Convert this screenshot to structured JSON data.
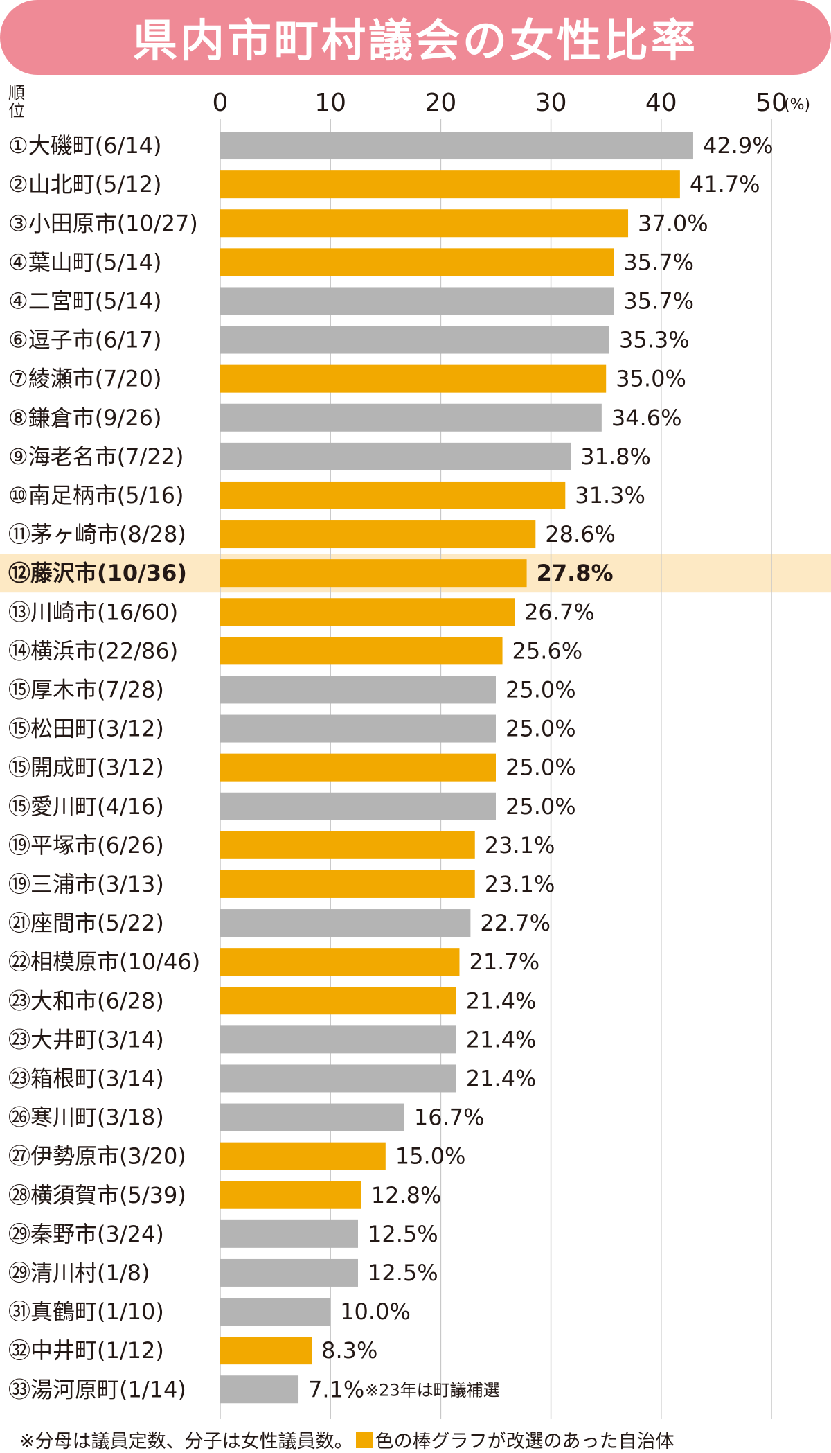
{
  "title": "県内市町村議会の女性比率",
  "colors": {
    "title_bg": "#ef8a96",
    "reelected": "#f2a900",
    "other": "#b4b4b4",
    "highlight_bg": "#fde9c4",
    "grid": "#c8c8c8"
  },
  "chart_data": {
    "type": "bar",
    "orientation": "horizontal",
    "rank_header": "順位",
    "x_unit": "(%)",
    "xlim": [
      0,
      50
    ],
    "x_ticks": [
      "0",
      "10",
      "20",
      "30",
      "40",
      "50"
    ],
    "rows": [
      {
        "label": "①大磯町(6/14)",
        "value": 42.9,
        "value_label": "42.9%",
        "reelected": false
      },
      {
        "label": "②山北町(5/12)",
        "value": 41.7,
        "value_label": "41.7%",
        "reelected": true
      },
      {
        "label": "③小田原市(10/27)",
        "value": 37.0,
        "value_label": "37.0%",
        "reelected": true
      },
      {
        "label": "④葉山町(5/14)",
        "value": 35.7,
        "value_label": "35.7%",
        "reelected": true
      },
      {
        "label": "④二宮町(5/14)",
        "value": 35.7,
        "value_label": "35.7%",
        "reelected": false
      },
      {
        "label": "⑥逗子市(6/17)",
        "value": 35.3,
        "value_label": "35.3%",
        "reelected": false
      },
      {
        "label": "⑦綾瀬市(7/20)",
        "value": 35.0,
        "value_label": "35.0%",
        "reelected": true
      },
      {
        "label": "⑧鎌倉市(9/26)",
        "value": 34.6,
        "value_label": "34.6%",
        "reelected": false
      },
      {
        "label": "⑨海老名市(7/22)",
        "value": 31.8,
        "value_label": "31.8%",
        "reelected": false
      },
      {
        "label": "⑩南足柄市(5/16)",
        "value": 31.3,
        "value_label": "31.3%",
        "reelected": true
      },
      {
        "label": "⑪茅ヶ崎市(8/28)",
        "value": 28.6,
        "value_label": "28.6%",
        "reelected": true
      },
      {
        "label": "⑫藤沢市(10/36)",
        "value": 27.8,
        "value_label": "27.8%",
        "reelected": true,
        "highlight": true
      },
      {
        "label": "⑬川崎市(16/60)",
        "value": 26.7,
        "value_label": "26.7%",
        "reelected": true
      },
      {
        "label": "⑭横浜市(22/86)",
        "value": 25.6,
        "value_label": "25.6%",
        "reelected": true
      },
      {
        "label": "⑮厚木市(7/28)",
        "value": 25.0,
        "value_label": "25.0%",
        "reelected": false
      },
      {
        "label": "⑮松田町(3/12)",
        "value": 25.0,
        "value_label": "25.0%",
        "reelected": false
      },
      {
        "label": "⑮開成町(3/12)",
        "value": 25.0,
        "value_label": "25.0%",
        "reelected": true
      },
      {
        "label": "⑮愛川町(4/16)",
        "value": 25.0,
        "value_label": "25.0%",
        "reelected": false
      },
      {
        "label": "⑲平塚市(6/26)",
        "value": 23.1,
        "value_label": "23.1%",
        "reelected": true
      },
      {
        "label": "⑲三浦市(3/13)",
        "value": 23.1,
        "value_label": "23.1%",
        "reelected": true
      },
      {
        "label": "㉑座間市(5/22)",
        "value": 22.7,
        "value_label": "22.7%",
        "reelected": false
      },
      {
        "label": "㉒相模原市(10/46)",
        "value": 21.7,
        "value_label": "21.7%",
        "reelected": true
      },
      {
        "label": "㉓大和市(6/28)",
        "value": 21.4,
        "value_label": "21.4%",
        "reelected": true
      },
      {
        "label": "㉓大井町(3/14)",
        "value": 21.4,
        "value_label": "21.4%",
        "reelected": false
      },
      {
        "label": "㉓箱根町(3/14)",
        "value": 21.4,
        "value_label": "21.4%",
        "reelected": false
      },
      {
        "label": "㉖寒川町(3/18)",
        "value": 16.7,
        "value_label": "16.7%",
        "reelected": false
      },
      {
        "label": "㉗伊勢原市(3/20)",
        "value": 15.0,
        "value_label": "15.0%",
        "reelected": true
      },
      {
        "label": "㉘横須賀市(5/39)",
        "value": 12.8,
        "value_label": "12.8%",
        "reelected": true
      },
      {
        "label": "㉙秦野市(3/24)",
        "value": 12.5,
        "value_label": "12.5%",
        "reelected": false
      },
      {
        "label": "㉙清川村(1/8)",
        "value": 12.5,
        "value_label": "12.5%",
        "reelected": false
      },
      {
        "label": "㉛真鶴町(1/10)",
        "value": 10.0,
        "value_label": "10.0%",
        "reelected": false
      },
      {
        "label": "㉜中井町(1/12)",
        "value": 8.3,
        "value_label": "8.3%",
        "reelected": true
      },
      {
        "label": "㉝湯河原町(1/14)",
        "value": 7.1,
        "value_label": "7.1%",
        "reelected": false,
        "note": "※23年は町議補選"
      }
    ]
  },
  "footnote": {
    "part1": "※分母は議員定数、分子は女性議員数。",
    "part2": "色の棒グラフが改選のあった自治体"
  }
}
